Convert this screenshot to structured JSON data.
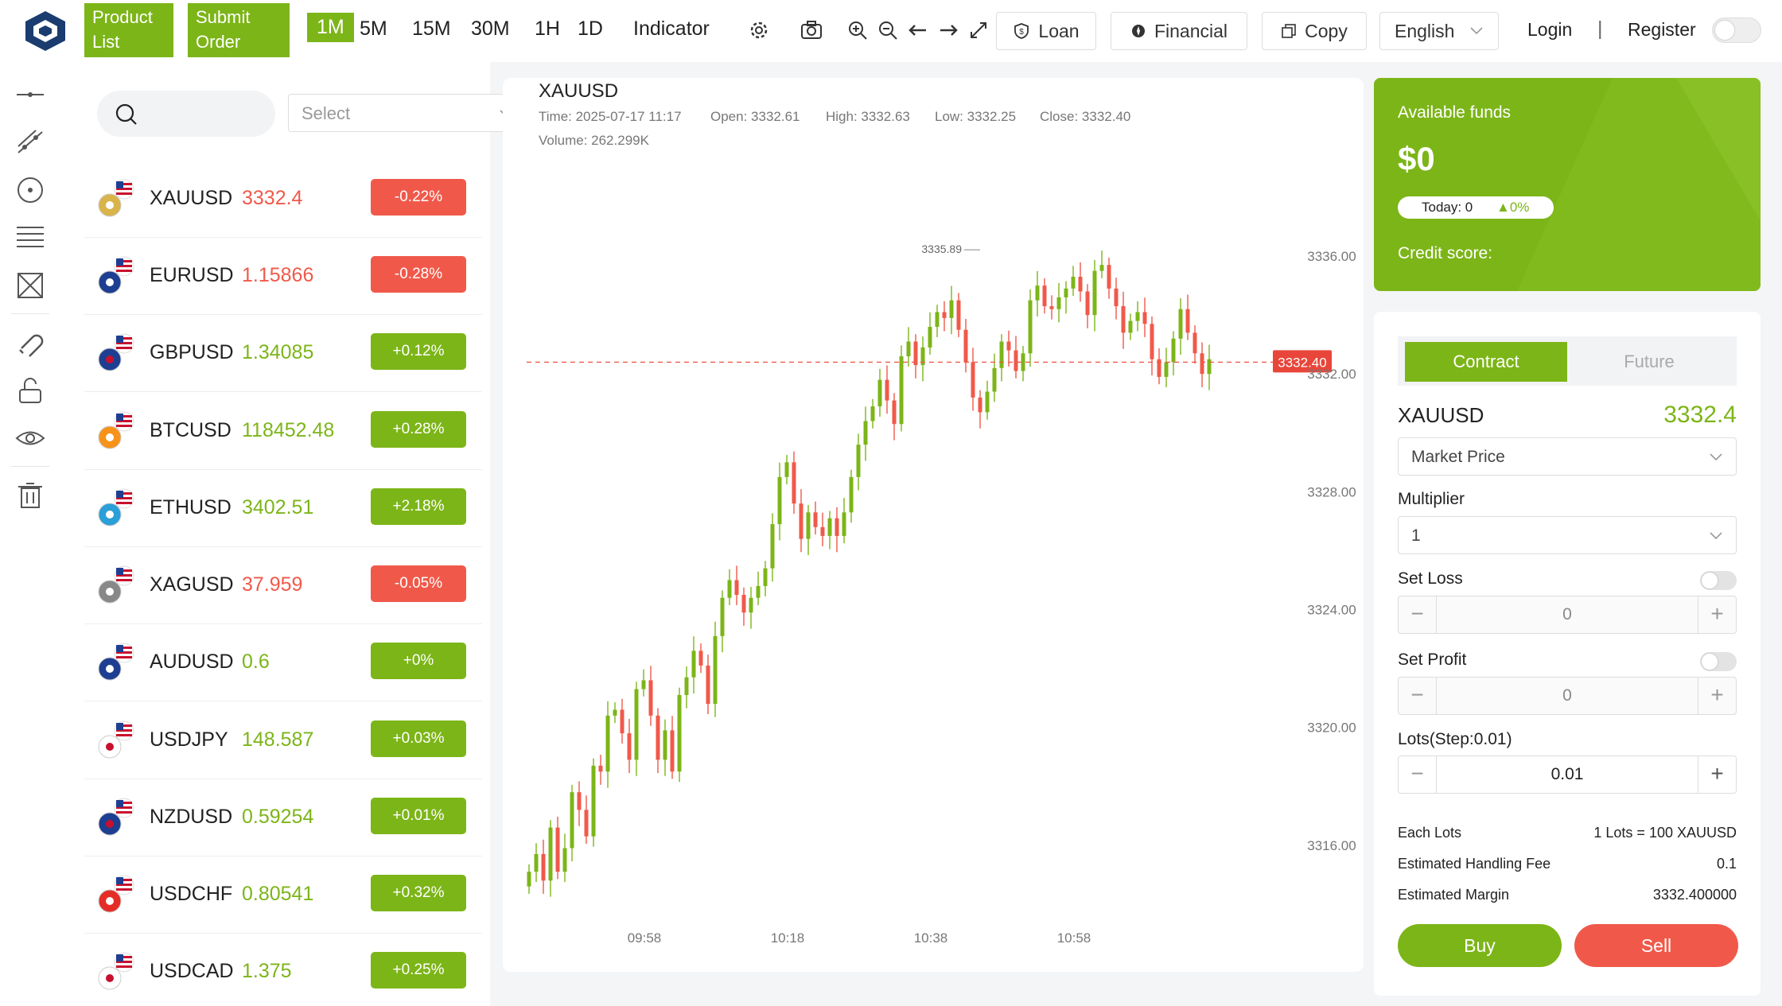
{
  "topbar": {
    "product_list": "Product\nList",
    "submit_order": "Submit\nOrder",
    "timeframes": [
      "1M",
      "5M",
      "15M",
      "30M",
      "1H",
      "1D"
    ],
    "indicator": "Indicator",
    "loan": "Loan",
    "financial": "Financial",
    "copy": "Copy",
    "language": "English",
    "login": "Login",
    "divider": "|",
    "register": "Register"
  },
  "instruments": {
    "select_placeholder": "Select",
    "items": [
      {
        "symbol": "XAUUSD",
        "price": "3332.4",
        "change": "-0.22%",
        "dir": "down"
      },
      {
        "symbol": "EURUSD",
        "price": "1.15866",
        "change": "-0.28%",
        "dir": "down"
      },
      {
        "symbol": "GBPUSD",
        "price": "1.34085",
        "change": "+0.12%",
        "dir": "up"
      },
      {
        "symbol": "BTCUSD",
        "price": "118452.48",
        "change": "+0.28%",
        "dir": "up"
      },
      {
        "symbol": "ETHUSD",
        "price": "3402.51",
        "change": "+2.18%",
        "dir": "up"
      },
      {
        "symbol": "XAGUSD",
        "price": "37.959",
        "change": "-0.05%",
        "dir": "down"
      },
      {
        "symbol": "AUDUSD",
        "price": "0.6",
        "change": "+0%",
        "dir": "up"
      },
      {
        "symbol": "USDJPY",
        "price": "148.587",
        "change": "+0.03%",
        "dir": "up"
      },
      {
        "symbol": "NZDUSD",
        "price": "0.59254",
        "change": "+0.01%",
        "dir": "up"
      },
      {
        "symbol": "USDCHF",
        "price": "0.80541",
        "change": "+0.32%",
        "dir": "up"
      },
      {
        "symbol": "USDCAD",
        "price": "1.375",
        "change": "+0.25%",
        "dir": "up"
      }
    ]
  },
  "chart": {
    "symbol": "XAUUSD",
    "time": "Time: 2025-07-17 11:17",
    "open": "Open: 3332.61",
    "high": "High: 3332.63",
    "low": "Low: 3332.25",
    "close": "Close: 3332.40",
    "volume": "Volume: 262.299K",
    "max_label": "3335.89",
    "current_price_tag": "3332.40",
    "y_ticks": [
      "3336.00",
      "3332.00",
      "3328.00",
      "3324.00",
      "3320.00",
      "3316.00"
    ],
    "x_ticks": [
      "09:58",
      "10:18",
      "10:38",
      "10:58"
    ]
  },
  "chart_data": {
    "type": "candlestick",
    "title": "XAUUSD",
    "interval": "1M",
    "x_ticks": [
      "09:58",
      "10:18",
      "10:38",
      "10:58"
    ],
    "y_ticks": [
      3336,
      3332,
      3328,
      3324,
      3320,
      3316
    ],
    "ylim": [
      3313.7,
      3338.0
    ],
    "current_price": 3332.4,
    "max_marker": 3335.89,
    "grid": false,
    "colors": {
      "up": "#7cb518",
      "down": "#f0594a"
    },
    "closes": [
      3315.1,
      3315.7,
      3314.8,
      3316.6,
      3315.1,
      3315.9,
      3317.8,
      3317.2,
      3316.3,
      3318.7,
      3318.5,
      3320.4,
      3320.6,
      3319.8,
      3318.9,
      3321.3,
      3321.6,
      3320.4,
      3318.9,
      3319.9,
      3318.5,
      3321.1,
      3321.7,
      3322.6,
      3322.1,
      3320.8,
      3323.1,
      3324.4,
      3325.0,
      3324.5,
      3323.9,
      3324.4,
      3324.8,
      3325.4,
      3326.9,
      3328.5,
      3329.0,
      3327.6,
      3326.4,
      3327.3,
      3326.8,
      3326.5,
      3327.1,
      3326.5,
      3327.3,
      3328.5,
      3329.6,
      3330.4,
      3330.9,
      3331.8,
      3331.1,
      3330.3,
      3332.6,
      3333.1,
      3332.3,
      3332.9,
      3333.6,
      3334.1,
      3333.9,
      3334.5,
      3333.5,
      3332.4,
      3331.2,
      3330.7,
      3331.4,
      3332.2,
      3333.1,
      3332.8,
      3332.1,
      3332.7,
      3334.5,
      3335.0,
      3334.3,
      3334.2,
      3334.6,
      3334.9,
      3335.3,
      3334.8,
      3334.0,
      3335.5,
      3335.7,
      3334.9,
      3334.3,
      3333.4,
      3333.8,
      3334.1,
      3333.7,
      3332.5,
      3331.9,
      3332.4,
      3333.2,
      3334.2,
      3333.4,
      3332.7,
      3332.0,
      3332.5
    ]
  },
  "funds": {
    "title": "Available funds",
    "amount": "$0",
    "today_label": "Today: 0",
    "today_change": "▲0%",
    "credit_score": "Credit score:"
  },
  "trade": {
    "tab_contract": "Contract",
    "tab_future": "Future",
    "symbol": "XAUUSD",
    "price": "3332.4",
    "order_type": "Market Price",
    "multiplier_label": "Multiplier",
    "multiplier_value": "1",
    "set_loss_label": "Set Loss",
    "set_loss_value": "0",
    "set_profit_label": "Set Profit",
    "set_profit_value": "0",
    "lots_label": "Lots(Step:0.01)",
    "lots_value": "0.01",
    "minus": "−",
    "plus": "+",
    "each_lots_label": "Each Lots",
    "each_lots_value": "1 Lots = 100 XAUUSD",
    "fee_label": "Estimated Handling Fee",
    "fee_value": "0.1",
    "margin_label": "Estimated Margin",
    "margin_value": "3332.400000",
    "buy": "Buy",
    "sell": "Sell"
  },
  "colors": {
    "accent": "#7cb518",
    "down": "#f0594a",
    "up": "#7cb518",
    "logo": "#1a3c6e"
  }
}
